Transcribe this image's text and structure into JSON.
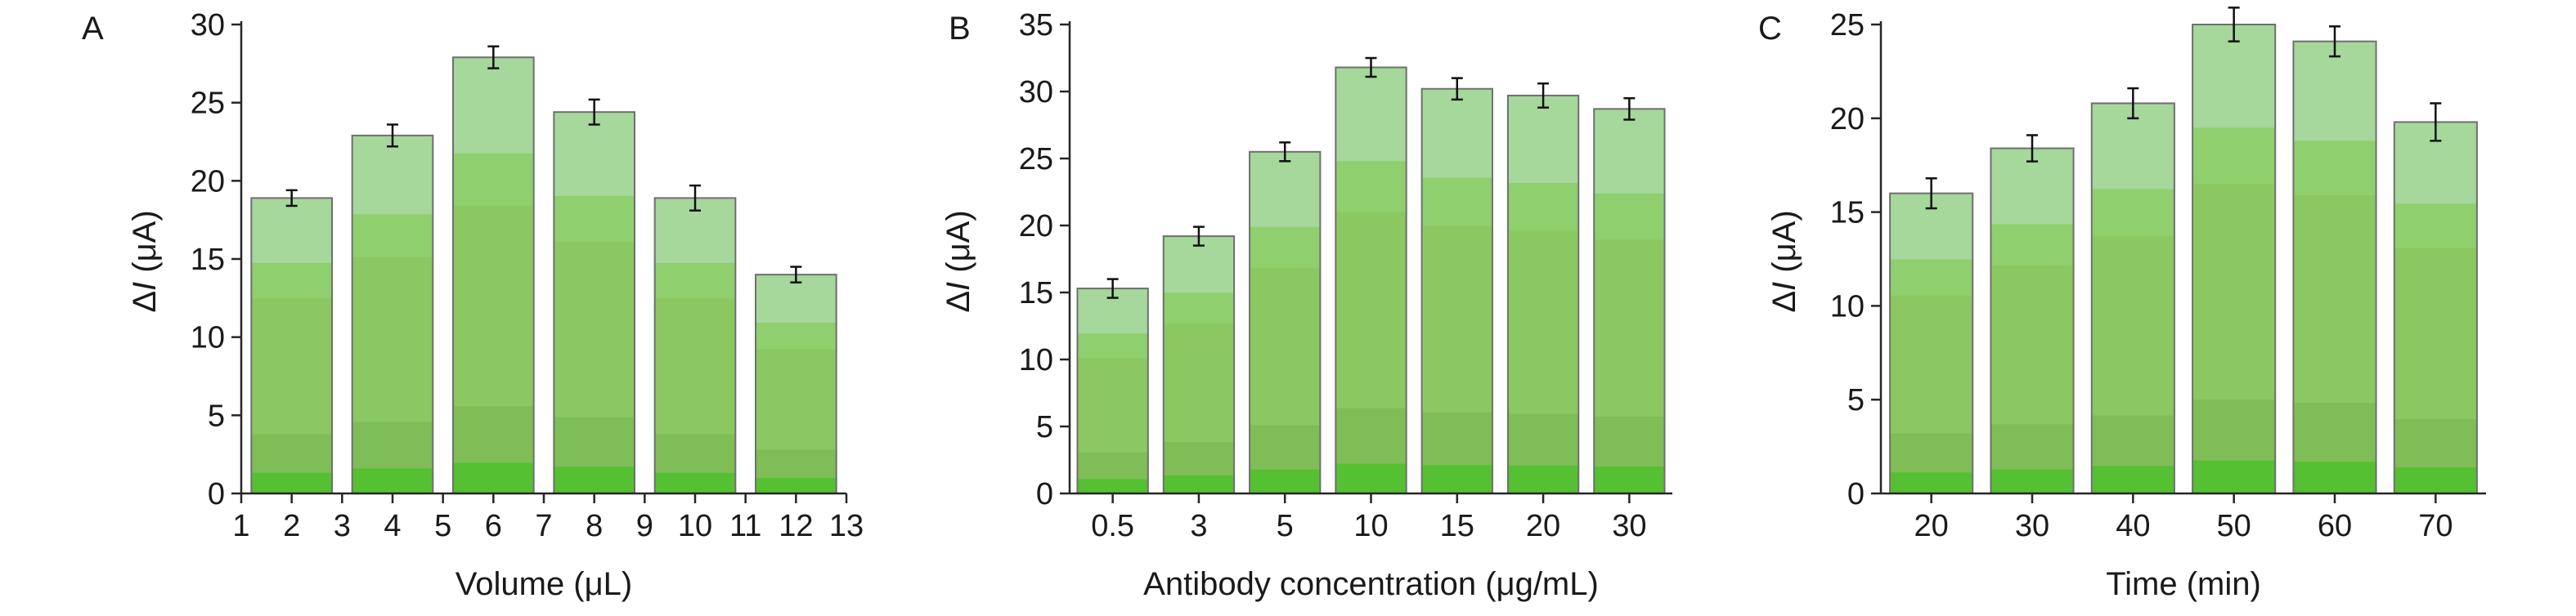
{
  "colors": {
    "bar_band_top": "#a6d79b",
    "bar_band_2": "#8fcf6e",
    "bar_band_3": "#8bc861",
    "bar_band_4": "#7fbd57",
    "bar_band_5": "#55c032",
    "bar_outline": "#6f6f6f",
    "error_bar": "#111111",
    "axis": "#262626"
  },
  "chart_data": [
    {
      "type": "bar",
      "panel_label": "A",
      "xlabel": "Volume (μL)",
      "ylabel_prefix": "Δ",
      "ylabel_italic": "I",
      "ylabel_suffix": " (μA)",
      "x_axis_kind": "numeric",
      "xlim": [
        1,
        13
      ],
      "x_ticks": [
        1,
        2,
        3,
        4,
        5,
        6,
        7,
        8,
        9,
        10,
        11,
        12,
        13
      ],
      "x_tick_labels": [
        "1",
        "2",
        "3",
        "4",
        "5",
        "6",
        "7",
        "8",
        "9",
        "10",
        "11",
        "12",
        "13"
      ],
      "x": [
        2,
        4,
        6,
        8,
        10,
        12
      ],
      "values": [
        18.9,
        22.9,
        27.9,
        24.4,
        18.9,
        14.0
      ],
      "errors": [
        0.5,
        0.7,
        0.7,
        0.8,
        0.8,
        0.5
      ],
      "ylim": [
        0,
        30
      ],
      "y_ticks": [
        0,
        5,
        10,
        15,
        20,
        25,
        30
      ],
      "grid": false,
      "legend": false
    },
    {
      "type": "bar",
      "panel_label": "B",
      "xlabel": "Antibody concentration (μg/mL)",
      "ylabel_prefix": "Δ",
      "ylabel_italic": "I",
      "ylabel_suffix": " (μA)",
      "x_axis_kind": "categorical",
      "categories": [
        "0.5",
        "3",
        "5",
        "10",
        "15",
        "20",
        "30"
      ],
      "values": [
        15.3,
        19.2,
        25.5,
        31.8,
        30.2,
        29.7,
        28.7
      ],
      "errors": [
        0.7,
        0.7,
        0.7,
        0.7,
        0.8,
        0.9,
        0.8
      ],
      "ylim": [
        0,
        35
      ],
      "y_ticks": [
        0,
        5,
        10,
        15,
        20,
        25,
        30,
        35
      ],
      "grid": false,
      "legend": false
    },
    {
      "type": "bar",
      "panel_label": "C",
      "xlabel": "Time (min)",
      "ylabel_prefix": "Δ",
      "ylabel_italic": "I",
      "ylabel_suffix": " (μA)",
      "x_axis_kind": "categorical",
      "categories": [
        "20",
        "30",
        "40",
        "50",
        "60",
        "70"
      ],
      "values": [
        16.0,
        18.4,
        20.8,
        25.0,
        24.1,
        19.8
      ],
      "errors": [
        0.8,
        0.7,
        0.8,
        0.9,
        0.8,
        1.0
      ],
      "ylim": [
        0,
        25
      ],
      "y_ticks": [
        0,
        5,
        10,
        15,
        20,
        25
      ],
      "grid": false,
      "legend": false
    }
  ]
}
